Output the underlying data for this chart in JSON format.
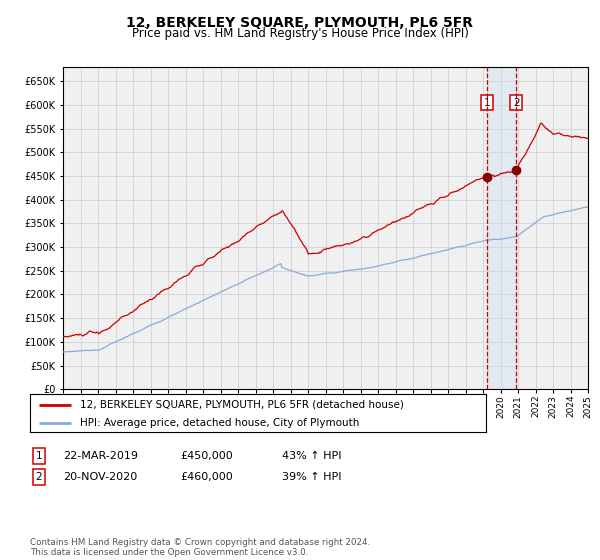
{
  "title": "12, BERKELEY SQUARE, PLYMOUTH, PL6 5FR",
  "subtitle": "Price paid vs. HM Land Registry's House Price Index (HPI)",
  "title_fontsize": 10,
  "subtitle_fontsize": 8.5,
  "ylim": [
    0,
    680000
  ],
  "yticks": [
    0,
    50000,
    100000,
    150000,
    200000,
    250000,
    300000,
    350000,
    400000,
    450000,
    500000,
    550000,
    600000,
    650000
  ],
  "grid_color": "#cccccc",
  "background_color": "#ffffff",
  "plot_bg_color": "#f0f0f0",
  "red_line_color": "#cc0000",
  "blue_line_color": "#88aadd",
  "vline_color": "#cc0000",
  "highlight_bg": "#ccddf0",
  "marker_color": "#880000",
  "legend_label_red": "12, BERKELEY SQUARE, PLYMOUTH, PL6 5FR (detached house)",
  "legend_label_blue": "HPI: Average price, detached house, City of Plymouth",
  "transaction1_label": "1",
  "transaction1_date": "22-MAR-2019",
  "transaction1_price": "£450,000",
  "transaction1_hpi": "43% ↑ HPI",
  "transaction2_label": "2",
  "transaction2_date": "20-NOV-2020",
  "transaction2_price": "£460,000",
  "transaction2_hpi": "39% ↑ HPI",
  "footer": "Contains HM Land Registry data © Crown copyright and database right 2024.\nThis data is licensed under the Open Government Licence v3.0.",
  "xstart_year": 1995,
  "xend_year": 2025,
  "transaction1_year": 2019.22,
  "transaction2_year": 2020.9
}
